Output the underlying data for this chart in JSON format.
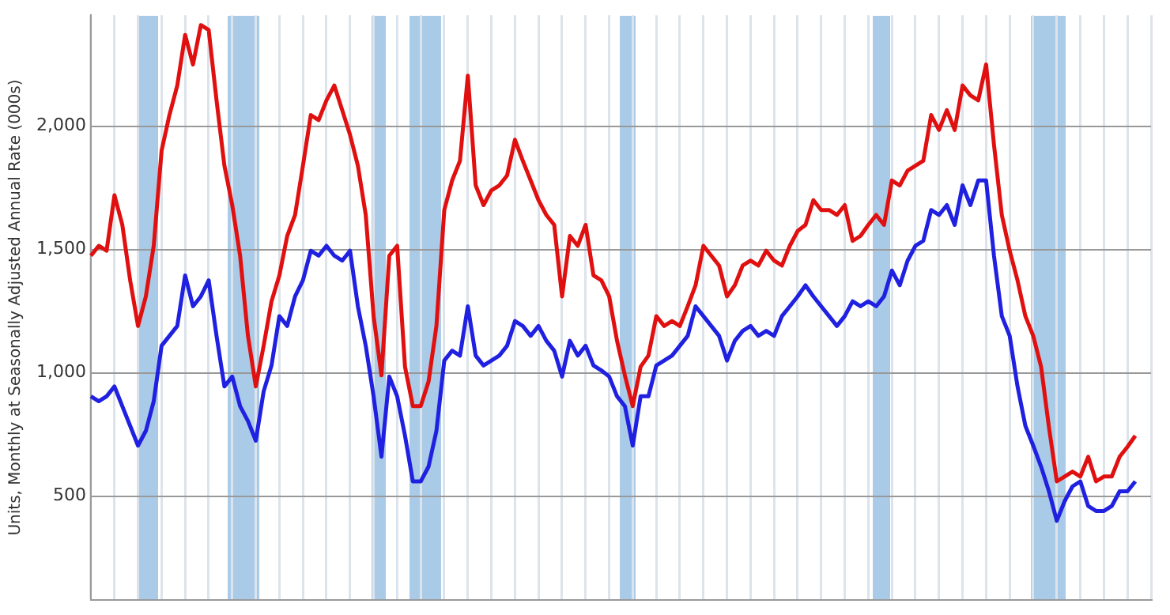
{
  "chart_data": {
    "type": "line",
    "ylabel": "Units, Monthly at Seasonally Adjusted Annual Rate (000s)",
    "categories": [
      null,
      null,
      null,
      null,
      null,
      null,
      null,
      null,
      null,
      null,
      null,
      null,
      null,
      null,
      null,
      null,
      null,
      null,
      null,
      null,
      null,
      null,
      null,
      null,
      null,
      null,
      null,
      null,
      null,
      null,
      null,
      null,
      null,
      null,
      null,
      null,
      null,
      null,
      null,
      null,
      null,
      null,
      null,
      null,
      null,
      null,
      null,
      null,
      null,
      null,
      null,
      null,
      null,
      null,
      null,
      null,
      null,
      null,
      null,
      null,
      null,
      null,
      null,
      null,
      null,
      null,
      null,
      null,
      null,
      null,
      null,
      null,
      null,
      null,
      null,
      null,
      null,
      null,
      null,
      null,
      null,
      null,
      null,
      null,
      null,
      null,
      null,
      null,
      null,
      null,
      null,
      null,
      null,
      null,
      null,
      null,
      null,
      null,
      null,
      null,
      null,
      null,
      null,
      null,
      null,
      null,
      null,
      null,
      null,
      null,
      null,
      null,
      null,
      null,
      null,
      null,
      null,
      null,
      null,
      null,
      null,
      null,
      null,
      null,
      null,
      null,
      null,
      null,
      null,
      null,
      null,
      null,
      null,
      null,
      null,
      null
    ],
    "series": [
      {
        "color": "#e01010",
        "values": [
          1475,
          1515,
          1495,
          1720,
          1600,
          1375,
          1190,
          1310,
          1515,
          1900,
          2045,
          2165,
          2370,
          2250,
          2410,
          2390,
          2105,
          1840,
          1680,
          1475,
          1150,
          945,
          1110,
          1290,
          1395,
          1555,
          1640,
          1840,
          2045,
          2025,
          2105,
          2165,
          2065,
          1965,
          1840,
          1640,
          1230,
          990,
          1475,
          1515,
          1025,
          865,
          865,
          965,
          1190,
          1660,
          1780,
          1860,
          2205,
          1760,
          1680,
          1740,
          1760,
          1800,
          1945,
          1860,
          1780,
          1700,
          1640,
          1600,
          1310,
          1555,
          1515,
          1600,
          1395,
          1375,
          1310,
          1130,
          990,
          865,
          1025,
          1070,
          1230,
          1190,
          1210,
          1190,
          1270,
          1355,
          1515,
          1475,
          1435,
          1310,
          1355,
          1435,
          1455,
          1435,
          1495,
          1455,
          1435,
          1515,
          1575,
          1600,
          1700,
          1660,
          1660,
          1640,
          1680,
          1535,
          1555,
          1600,
          1640,
          1600,
          1780,
          1760,
          1820,
          1840,
          1860,
          2045,
          1985,
          2065,
          1985,
          2165,
          2125,
          2105,
          2250,
          1925,
          1640,
          1495,
          1375,
          1230,
          1150,
          1025,
          780,
          560,
          580,
          600,
          580,
          660,
          560,
          580,
          580,
          660,
          700,
          745,
          null,
          null
        ]
      },
      {
        "color": "#2020e0",
        "values": [
          905,
          885,
          905,
          945,
          865,
          785,
          705,
          765,
          885,
          1110,
          1150,
          1190,
          1395,
          1270,
          1310,
          1375,
          1150,
          945,
          985,
          865,
          805,
          725,
          925,
          1030,
          1230,
          1190,
          1310,
          1375,
          1495,
          1475,
          1515,
          1475,
          1455,
          1495,
          1270,
          1110,
          905,
          660,
          985,
          905,
          745,
          560,
          560,
          620,
          765,
          1050,
          1090,
          1070,
          1270,
          1070,
          1030,
          1050,
          1070,
          1110,
          1210,
          1190,
          1150,
          1190,
          1130,
          1090,
          985,
          1130,
          1070,
          1110,
          1030,
          1010,
          985,
          905,
          865,
          705,
          905,
          905,
          1030,
          1050,
          1070,
          1110,
          1150,
          1270,
          1230,
          1190,
          1150,
          1050,
          1130,
          1170,
          1190,
          1150,
          1170,
          1150,
          1230,
          1270,
          1310,
          1355,
          1310,
          1270,
          1230,
          1190,
          1230,
          1290,
          1270,
          1290,
          1270,
          1310,
          1415,
          1355,
          1455,
          1515,
          1535,
          1660,
          1640,
          1680,
          1600,
          1760,
          1680,
          1780,
          1780,
          1475,
          1230,
          1150,
          945,
          785,
          705,
          620,
          520,
          400,
          480,
          540,
          560,
          460,
          440,
          440,
          460,
          520,
          520,
          560,
          null,
          null
        ]
      }
    ],
    "ylim": [
      80,
      2450
    ],
    "yticks": [
      500,
      {
        "value": 1000,
        "label": "1,000"
      },
      {
        "value": 1500,
        "label": "1,500"
      },
      {
        "value": 2000,
        "label": "2,000"
      }
    ],
    "tick_labels": "y",
    "grid": true,
    "legend": false,
    "marker": "none",
    "line_style": "solid"
  }
}
